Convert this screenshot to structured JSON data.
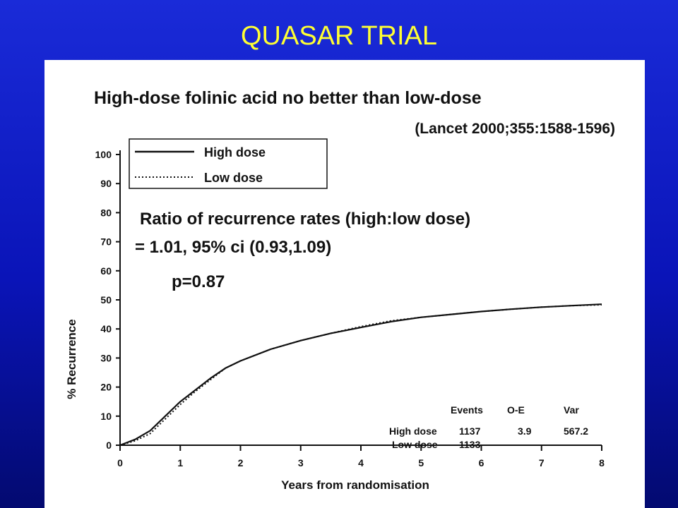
{
  "slide": {
    "title": "QUASAR TRIAL"
  },
  "chart_data": {
    "type": "line",
    "title": "High-dose folinic acid no better than low-dose",
    "subtitle": "(Lancet 2000;355:1588-1596)",
    "xlabel": "Years from randomisation",
    "ylabel": "% Recurrence",
    "xlim": [
      0,
      8
    ],
    "ylim": [
      0,
      100
    ],
    "x_ticks": [
      "0",
      "1",
      "2",
      "3",
      "4",
      "5",
      "6",
      "7",
      "8"
    ],
    "y_ticks": [
      "0",
      "10",
      "20",
      "30",
      "40",
      "50",
      "60",
      "70",
      "80",
      "90",
      "100"
    ],
    "legend_position": "top-left",
    "series": [
      {
        "name": "High dose",
        "style": "solid",
        "x": [
          0,
          0.25,
          0.5,
          0.75,
          1,
          1.25,
          1.5,
          1.75,
          2,
          2.5,
          3,
          3.5,
          4,
          4.5,
          5,
          5.5,
          6,
          6.5,
          7,
          7.5,
          8
        ],
        "y": [
          0,
          2,
          5,
          10,
          15,
          19,
          23,
          26.5,
          29,
          33,
          36,
          38.5,
          40.5,
          42.5,
          44,
          45,
          46,
          46.8,
          47.5,
          48,
          48.5
        ]
      },
      {
        "name": "Low dose",
        "style": "dotted",
        "x": [
          0,
          0.25,
          0.5,
          0.75,
          1,
          1.25,
          1.5,
          1.75,
          2,
          2.5,
          3,
          3.5,
          4,
          4.5,
          5,
          5.5,
          6,
          6.5,
          7,
          7.5,
          8
        ],
        "y": [
          0,
          1.5,
          4,
          9,
          14,
          18.5,
          22.5,
          26.5,
          29,
          33,
          36,
          38.5,
          40.8,
          42.8,
          44,
          45,
          46,
          46.8,
          47.5,
          48,
          48.3
        ]
      }
    ],
    "annotations": {
      "ratio_line1": "Ratio of recurrence rates (high:low dose)",
      "ratio_line2": "= 1.01, 95% ci (0.93,1.09)",
      "p_value": "p=0.87"
    },
    "table": {
      "headers": [
        "Events",
        "O-E",
        "Var"
      ],
      "rows": [
        {
          "label": "High dose",
          "events": "1137",
          "oe": "3.9",
          "var": "567.2"
        },
        {
          "label": "Low dose",
          "events": "1133",
          "oe": "",
          "var": ""
        }
      ]
    }
  }
}
